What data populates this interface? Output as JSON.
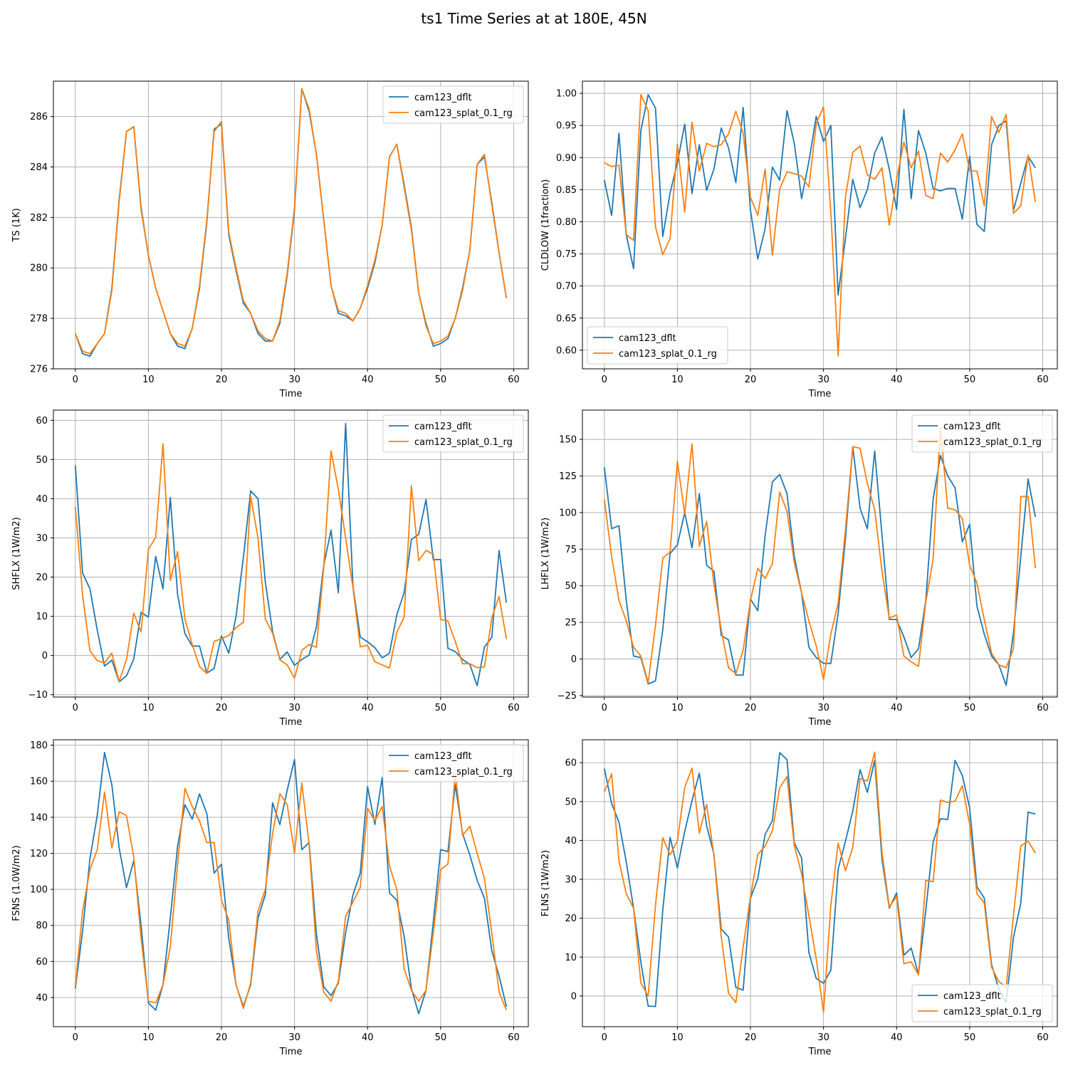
{
  "figure": {
    "title": "ts1 Time Series at at 180E, 45N"
  },
  "colors": {
    "series1": "#1f77b4",
    "series2": "#ff7f0e",
    "grid": "#b0b0b0",
    "axes": "#000000"
  },
  "chart_data": [
    {
      "type": "line",
      "xlabel": "Time",
      "ylabel": "TS (1K)",
      "xlim": [
        -3,
        62
      ],
      "ylim": [
        276,
        287.4
      ],
      "xticks": [
        0,
        10,
        20,
        30,
        40,
        50,
        60
      ],
      "yticks": [
        276,
        278,
        280,
        282,
        284,
        286
      ],
      "ytick_labels": [
        "276",
        "278",
        "280",
        "282",
        "284",
        "286"
      ],
      "grid": true,
      "legend_position": "upper right",
      "series": [
        {
          "name": "cam123_dflt",
          "color": "#1f77b4",
          "values": [
            277.4,
            276.6,
            276.5,
            277,
            277.4,
            279.2,
            282.7,
            285.4,
            285.6,
            282.4,
            280.5,
            279.2,
            278.3,
            277.4,
            276.9,
            276.8,
            277.6,
            279.2,
            281.8,
            285.5,
            285.7,
            281.3,
            279.9,
            278.6,
            278.2,
            277.4,
            277.1,
            277.1,
            277.8,
            279.7,
            282.3,
            287.1,
            286.2,
            284.5,
            281.9,
            279.3,
            278.2,
            278.1,
            277.9,
            278.4,
            279.2,
            280.2,
            281.7,
            284.4,
            284.9,
            283.3,
            281.6,
            279,
            277.8,
            276.9,
            277,
            277.2,
            278,
            279.2,
            280.7,
            284.1,
            284.4,
            282.6,
            280.6,
            278.8
          ]
        },
        {
          "name": "cam123_splat_0.1_rg",
          "color": "#ff7f0e",
          "values": [
            277.4,
            276.7,
            276.6,
            277,
            277.4,
            279.1,
            282.6,
            285.4,
            285.6,
            282.3,
            280.5,
            279.2,
            278.3,
            277.4,
            277,
            276.9,
            277.6,
            279.3,
            281.9,
            285.4,
            285.8,
            281.4,
            280,
            278.7,
            278.2,
            277.5,
            277.2,
            277.1,
            277.9,
            279.8,
            282.4,
            287.1,
            286.3,
            284.5,
            281.9,
            279.3,
            278.3,
            278.2,
            277.9,
            278.4,
            279.3,
            280.3,
            281.7,
            284.4,
            284.9,
            283.2,
            281.5,
            279,
            277.7,
            277,
            277.1,
            277.3,
            278,
            279.1,
            280.7,
            284.1,
            284.5,
            282.5,
            280.6,
            278.8
          ]
        }
      ]
    },
    {
      "type": "line",
      "xlabel": "Time",
      "ylabel": "CLDLOW (1fraction)",
      "xlim": [
        -3,
        62
      ],
      "ylim": [
        0.571,
        1.019
      ],
      "xticks": [
        0,
        10,
        20,
        30,
        40,
        50,
        60
      ],
      "yticks": [
        0.6,
        0.65,
        0.7,
        0.75,
        0.8,
        0.85,
        0.9,
        0.95,
        1.0
      ],
      "ytick_labels": [
        "0.60",
        "0.65",
        "0.70",
        "0.75",
        "0.80",
        "0.85",
        "0.90",
        "0.95",
        "1.00"
      ],
      "grid": true,
      "legend_position": "lower left",
      "series": [
        {
          "name": "cam123_dflt",
          "color": "#1f77b4",
          "values": [
            0.865,
            0.81,
            0.938,
            0.78,
            0.727,
            0.942,
            0.998,
            0.977,
            0.777,
            0.845,
            0.892,
            0.952,
            0.844,
            0.92,
            0.849,
            0.882,
            0.946,
            0.915,
            0.861,
            0.978,
            0.818,
            0.742,
            0.789,
            0.885,
            0.865,
            0.973,
            0.922,
            0.836,
            0.894,
            0.964,
            0.925,
            0.95,
            0.686,
            0.774,
            0.866,
            0.822,
            0.85,
            0.907,
            0.932,
            0.882,
            0.819,
            0.975,
            0.836,
            0.942,
            0.907,
            0.852,
            0.848,
            0.852,
            0.852,
            0.804,
            0.902,
            0.796,
            0.785,
            0.92,
            0.95,
            0.957,
            0.818,
            0.86,
            0.902,
            0.884
          ]
        },
        {
          "name": "cam123_splat_0.1_rg",
          "color": "#ff7f0e",
          "values": [
            0.892,
            0.886,
            0.888,
            0.78,
            0.771,
            0.998,
            0.973,
            0.792,
            0.749,
            0.774,
            0.921,
            0.815,
            0.955,
            0.879,
            0.922,
            0.917,
            0.92,
            0.937,
            0.972,
            0.938,
            0.838,
            0.81,
            0.882,
            0.748,
            0.851,
            0.878,
            0.875,
            0.871,
            0.854,
            0.953,
            0.979,
            0.815,
            0.591,
            0.839,
            0.908,
            0.918,
            0.873,
            0.866,
            0.884,
            0.795,
            0.866,
            0.924,
            0.884,
            0.91,
            0.841,
            0.836,
            0.907,
            0.893,
            0.912,
            0.937,
            0.879,
            0.879,
            0.825,
            0.964,
            0.939,
            0.967,
            0.813,
            0.825,
            0.904,
            0.831
          ]
        }
      ]
    },
    {
      "type": "line",
      "xlabel": "Time",
      "ylabel": "SHFLX (1W/m2)",
      "xlim": [
        -3,
        62
      ],
      "ylim": [
        -10.6,
        62.6
      ],
      "xticks": [
        0,
        10,
        20,
        30,
        40,
        50,
        60
      ],
      "yticks": [
        -10,
        0,
        10,
        20,
        30,
        40,
        50,
        60
      ],
      "ytick_labels": [
        "−10",
        "0",
        "10",
        "20",
        "30",
        "40",
        "50",
        "60"
      ],
      "grid": true,
      "legend_position": "upper right",
      "series": [
        {
          "name": "cam123_dflt",
          "color": "#1f77b4",
          "values": [
            48.5,
            21,
            17,
            6.5,
            -2.7,
            -1.2,
            -6.7,
            -5.2,
            -0.9,
            11,
            9.8,
            25.3,
            17,
            40.3,
            15.5,
            5.6,
            2.4,
            2.4,
            -4.5,
            -3.3,
            5,
            0.6,
            10,
            25,
            42,
            40,
            18.8,
            6.1,
            -1,
            0.9,
            -2.5,
            -1,
            0.1,
            7.3,
            23,
            32,
            16,
            59.2,
            17.7,
            4.7,
            3.5,
            2,
            -0.6,
            0.6,
            10.4,
            16,
            29.6,
            30.9,
            39.8,
            24.4,
            24.5,
            1.8,
            1,
            -1,
            -2.3,
            -7.7,
            2.2,
            4.6,
            26.8,
            13.5
          ]
        },
        {
          "name": "cam123_splat_0.1_rg",
          "color": "#ff7f0e",
          "values": [
            37.9,
            15.3,
            1.2,
            -1.3,
            -1.9,
            0.6,
            -6.6,
            -1.1,
            10.8,
            6,
            27.1,
            30.1,
            54,
            19.2,
            26.5,
            9.3,
            2.8,
            -2.8,
            -4.6,
            3.6,
            4.3,
            5.1,
            7.1,
            8.5,
            40.6,
            30,
            9.3,
            5.7,
            -1.1,
            -2.4,
            -5.8,
            1.3,
            2.8,
            2.1,
            22.5,
            52.2,
            42.4,
            30,
            17.3,
            2.2,
            2.6,
            -1.6,
            -2.4,
            -3.2,
            5.9,
            9.8,
            43.3,
            24.2,
            26.8,
            25.8,
            9.2,
            8.8,
            3.6,
            -2.1,
            -2.1,
            -3.1,
            -2.9,
            9.5,
            15.1,
            4.2
          ]
        }
      ]
    },
    {
      "type": "line",
      "xlabel": "Time",
      "ylabel": "LHFLX (1W/m2)",
      "xlim": [
        -3,
        62
      ],
      "ylim": [
        -26,
        170
      ],
      "xticks": [
        0,
        10,
        20,
        30,
        40,
        50,
        60
      ],
      "yticks": [
        -25,
        0,
        25,
        50,
        75,
        100,
        125,
        150
      ],
      "ytick_labels": [
        "−25",
        "0",
        "25",
        "50",
        "75",
        "100",
        "125",
        "150"
      ],
      "grid": true,
      "legend_position": "upper right",
      "series": [
        {
          "name": "cam123_dflt",
          "color": "#1f77b4",
          "values": [
            131,
            89,
            91,
            40,
            2,
            1,
            -17,
            -15,
            20,
            72,
            78,
            100,
            76,
            113,
            64,
            60,
            16,
            13,
            -11,
            -11,
            41,
            33,
            84,
            121,
            126,
            113,
            70,
            45,
            8,
            1,
            -3,
            -3,
            31,
            82,
            145,
            103,
            89,
            142,
            85,
            27,
            27,
            15,
            1,
            7,
            40,
            109,
            139,
            125,
            117,
            80,
            92,
            36,
            17,
            2,
            -4,
            -18,
            18,
            70,
            123,
            97
          ]
        },
        {
          "name": "cam123_splat_0.1_rg",
          "color": "#ff7f0e",
          "values": [
            109,
            70,
            40,
            26,
            8,
            2,
            -16,
            23,
            69,
            73,
            135,
            99,
            147,
            77,
            94,
            51,
            20,
            -6,
            -10,
            6,
            40,
            62,
            55,
            65,
            114,
            101,
            66,
            45,
            26,
            9,
            -14,
            17,
            38,
            88,
            145,
            144,
            120,
            102,
            60,
            28,
            30,
            2,
            -2,
            -5,
            39,
            68,
            158,
            103,
            102,
            96,
            64,
            52,
            27,
            4,
            -4,
            -6,
            7,
            111,
            111,
            62
          ]
        }
      ]
    },
    {
      "type": "line",
      "xlabel": "Time",
      "ylabel": "FSNS (1.0W/m2)",
      "xlim": [
        -3,
        62
      ],
      "ylim": [
        23.8,
        183
      ],
      "xticks": [
        0,
        10,
        20,
        30,
        40,
        50,
        60
      ],
      "yticks": [
        40,
        60,
        80,
        100,
        120,
        140,
        160,
        180
      ],
      "ytick_labels": [
        "40",
        "60",
        "80",
        "100",
        "120",
        "140",
        "160",
        "180"
      ],
      "grid": true,
      "legend_position": "upper right",
      "series": [
        {
          "name": "cam123_dflt",
          "color": "#1f77b4",
          "values": [
            45,
            77,
            117,
            141,
            176,
            158,
            123,
            101,
            116,
            80,
            37,
            33,
            47,
            84,
            124,
            147,
            139,
            153,
            142,
            109,
            114,
            73,
            47,
            35,
            47,
            84,
            97,
            148,
            136,
            155,
            172,
            122,
            126,
            75,
            46,
            41,
            48,
            76,
            97,
            109,
            157,
            136,
            162,
            98,
            94,
            74,
            45,
            31,
            44,
            82,
            122,
            121,
            158,
            131,
            119,
            105,
            95,
            66,
            52,
            35
          ]
        },
        {
          "name": "cam123_splat_0.1_rg",
          "color": "#ff7f0e",
          "values": [
            46,
            88,
            111,
            122,
            154,
            123,
            143,
            141,
            118,
            73,
            38,
            37,
            47,
            68,
            114,
            156,
            146,
            138,
            126,
            126,
            94,
            83,
            47,
            34,
            48,
            88,
            100,
            131,
            153,
            147,
            120,
            159,
            125,
            66,
            43,
            38,
            49,
            85,
            93,
            101,
            145,
            138,
            146,
            113,
            100,
            56,
            44,
            38,
            44,
            76,
            111,
            114,
            164,
            130,
            135,
            120,
            106,
            76,
            43,
            33
          ]
        }
      ]
    },
    {
      "type": "line",
      "xlabel": "Time",
      "ylabel": "FLNS (1W/m2)",
      "xlim": [
        -3,
        62
      ],
      "ylim": [
        -7.9,
        65.9
      ],
      "xticks": [
        0,
        10,
        20,
        30,
        40,
        50,
        60
      ],
      "yticks": [
        0,
        10,
        20,
        30,
        40,
        50,
        60
      ],
      "ytick_labels": [
        "0",
        "10",
        "20",
        "30",
        "40",
        "50",
        "60"
      ],
      "grid": true,
      "legend_position": "lower right",
      "series": [
        {
          "name": "cam123_dflt",
          "color": "#1f77b4",
          "values": [
            58.5,
            49.5,
            44.7,
            34.5,
            22.6,
            8.7,
            -2.6,
            -2.7,
            22.1,
            40.8,
            32.9,
            42.3,
            50.2,
            57.3,
            43.8,
            36.5,
            17.2,
            15.2,
            2.2,
            1.5,
            25.1,
            30.2,
            41.5,
            45.1,
            62.6,
            60.8,
            39.4,
            35.5,
            11.2,
            4.5,
            3.3,
            6.6,
            32.6,
            39.8,
            47.6,
            58.2,
            52.4,
            60.6,
            35.2,
            22.6,
            26.5,
            10.5,
            12.3,
            5.6,
            22.1,
            39.5,
            45.6,
            45.4,
            60.6,
            56.7,
            48.4,
            28.1,
            25.2,
            8.1,
            1.7,
            -1.7,
            15.1,
            23.9,
            47.3,
            46.8
          ]
        },
        {
          "name": "cam123_splat_0.1_rg",
          "color": "#ff7f0e",
          "values": [
            52.5,
            57.1,
            34.8,
            26.3,
            22.6,
            3.3,
            0,
            23.4,
            40.7,
            36.3,
            39.9,
            53.6,
            58.6,
            41.9,
            49.3,
            36.2,
            15.3,
            0.7,
            -1.7,
            12.6,
            25.5,
            36.4,
            38.5,
            42.5,
            53.6,
            56.4,
            38.7,
            31.4,
            20.6,
            9.6,
            -4.2,
            23.3,
            39.3,
            32.2,
            38.2,
            55.9,
            55.3,
            62.7,
            37,
            22.9,
            25.6,
            8.3,
            8.8,
            5.4,
            29.7,
            29.4,
            50.4,
            49.8,
            50.1,
            54.1,
            44.2,
            26.3,
            23.9,
            7.4,
            3.7,
            2.3,
            20.8,
            38.6,
            39.8,
            36.8
          ]
        }
      ]
    }
  ]
}
